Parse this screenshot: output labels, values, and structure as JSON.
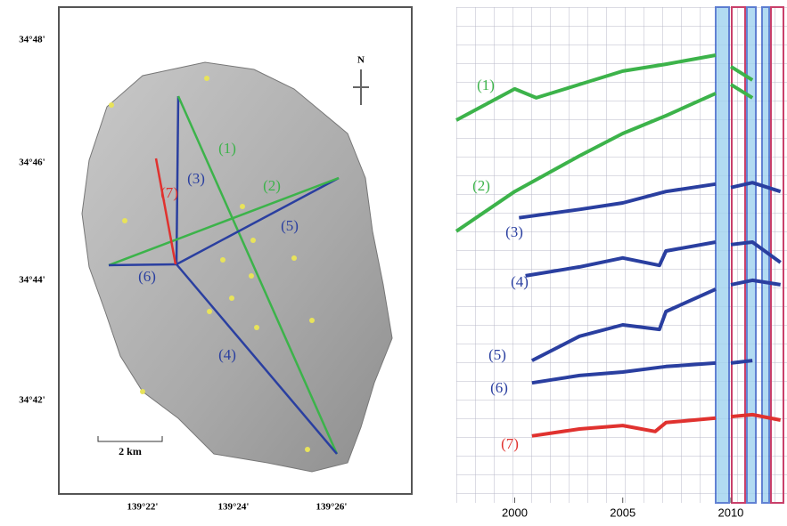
{
  "map": {
    "lat_labels": [
      "34°48'",
      "34°46'",
      "34°44'",
      "34°42'"
    ],
    "lon_labels": [
      "139°22'",
      "139°24'",
      "139°26'"
    ],
    "north": "N",
    "scale": "2 km"
  },
  "chart_data": {
    "type": "line",
    "xlim": [
      1997.3,
      2012.6
    ],
    "ylim": [
      0,
      100
    ],
    "xticks": [
      2000,
      2005,
      2010
    ],
    "grid": true,
    "series": [
      {
        "name": "(1)",
        "color": "#3cb34a",
        "x": [
          1997.3,
          2000,
          2001,
          2003,
          2005,
          2007,
          2009.3,
          2009.65,
          2010,
          2011
        ],
        "values": [
          77.2,
          83.5,
          81.7,
          84.4,
          87.1,
          88.5,
          90.3,
          null,
          88.0,
          85.3
        ]
      },
      {
        "name": "(2)",
        "color": "#3cb34a",
        "x": [
          1997.3,
          2000,
          2003,
          2005,
          2007,
          2009.3,
          2009.65,
          2010,
          2011
        ],
        "values": [
          54.8,
          62.8,
          70.0,
          74.5,
          78.1,
          82.6,
          null,
          84.4,
          81.7
        ]
      },
      {
        "name": "(3)",
        "color": "#2a3fa0",
        "x": [
          2000.2,
          2003,
          2005,
          2007,
          2009.3,
          2009.65,
          2010,
          2011,
          2012.3
        ],
        "values": [
          57.5,
          59.2,
          60.5,
          62.8,
          64.3,
          null,
          63.6,
          64.6,
          62.8
        ]
      },
      {
        "name": "(4)",
        "color": "#2a3fa0",
        "x": [
          2000.5,
          2003,
          2005,
          2006.7,
          2007,
          2009.3,
          2009.65,
          2010,
          2011,
          2012.3
        ],
        "values": [
          45.8,
          47.6,
          49.4,
          47.9,
          50.8,
          52.6,
          null,
          52.1,
          52.6,
          48.5
        ]
      },
      {
        "name": "(5)",
        "color": "#2a3fa0",
        "x": [
          2000.8,
          2003,
          2005,
          2006.7,
          2007,
          2009.3,
          2009.65,
          2010,
          2011,
          2012.3
        ],
        "values": [
          28.7,
          33.6,
          35.9,
          35.0,
          38.6,
          43.1,
          null,
          44.0,
          44.9,
          44.0
        ]
      },
      {
        "name": "(6)",
        "color": "#2a3fa0",
        "x": [
          2000.8,
          2003,
          2005,
          2007,
          2009.3,
          2009.65,
          2010,
          2011
        ],
        "values": [
          24.2,
          25.7,
          26.4,
          27.5,
          28.2,
          null,
          28.2,
          28.7
        ]
      },
      {
        "name": "(7)",
        "color": "#e0322f",
        "x": [
          2000.8,
          2003,
          2005,
          2006.5,
          2007,
          2009.3,
          2009.65,
          2010,
          2011,
          2012.3
        ],
        "values": [
          13.5,
          14.9,
          15.6,
          14.4,
          16.2,
          17.1,
          null,
          17.4,
          17.8,
          16.7
        ]
      }
    ]
  }
}
